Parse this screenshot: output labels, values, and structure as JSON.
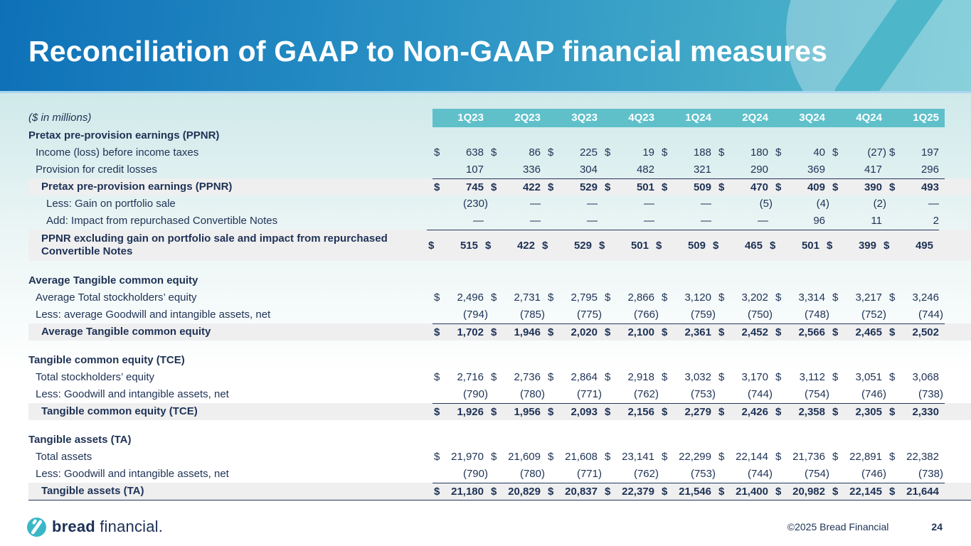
{
  "slide": {
    "title": "Reconciliation of GAAP to Non-GAAP financial measures",
    "units_note": "($ in millions)",
    "footer": {
      "brand_word1": "bread",
      "brand_word2": "financial.",
      "copyright": "©2025 Bread Financial",
      "page_number": "24"
    },
    "colors": {
      "banner_blue": "#0e71b8",
      "banner_teal": "#55bcca",
      "table_header_teal": "#5fc0ca",
      "text_navy": "#1e3255",
      "subtotal_bg": "#efeff0",
      "separator_light_blue": "#a9d6ee"
    },
    "icons": {
      "brand_logo_mark": "bread-financial-circle-slash",
      "watermark": "bread-financial-circle-slash"
    }
  },
  "table": {
    "columns": [
      "1Q23",
      "2Q23",
      "3Q23",
      "4Q23",
      "1Q24",
      "2Q24",
      "3Q24",
      "4Q24",
      "1Q25"
    ],
    "sections": [
      {
        "header": "Pretax pre-provision earnings (PPNR)",
        "rows": [
          {
            "label": "Income (loss) before income taxes",
            "style": "data",
            "dollar": true,
            "values": [
              "638",
              "86",
              "225",
              "19",
              "188",
              "180",
              "40",
              "(27)",
              "197"
            ]
          },
          {
            "label": "Provision for credit losses",
            "style": "data",
            "dollar": false,
            "values": [
              "107",
              "336",
              "304",
              "482",
              "321",
              "290",
              "369",
              "417",
              "296"
            ]
          },
          {
            "label": "Pretax pre-provision earnings (PPNR)",
            "style": "subtotal",
            "dollar": true,
            "values": [
              "745",
              "422",
              "529",
              "501",
              "509",
              "470",
              "409",
              "390",
              "493"
            ]
          },
          {
            "label": "Less: Gain on portfolio sale",
            "style": "adjustment",
            "dollar": false,
            "values": [
              "(230)",
              "—",
              "—",
              "—",
              "—",
              "(5)",
              "(4)",
              "(2)",
              "—"
            ]
          },
          {
            "label": "Add: Impact from repurchased Convertible Notes",
            "style": "adjustment",
            "dollar": false,
            "values": [
              "—",
              "—",
              "—",
              "—",
              "—",
              "—",
              "96",
              "11",
              "2"
            ]
          },
          {
            "label": "PPNR excluding gain on portfolio sale and impact from repurchased Convertible Notes",
            "style": "subtotal",
            "twoline": true,
            "dollar": true,
            "values": [
              "515",
              "422",
              "529",
              "501",
              "509",
              "465",
              "501",
              "399",
              "495"
            ]
          }
        ]
      },
      {
        "header": "Average Tangible common equity",
        "rows": [
          {
            "label": "Average Total stockholders’ equity",
            "style": "data",
            "dollar": true,
            "values": [
              "2,496",
              "2,731",
              "2,795",
              "2,866",
              "3,120",
              "3,202",
              "3,314",
              "3,217",
              "3,246"
            ]
          },
          {
            "label": "Less: average Goodwill and intangible assets, net",
            "style": "data",
            "dollar": false,
            "values": [
              "(794)",
              "(785)",
              "(775)",
              "(766)",
              "(759)",
              "(750)",
              "(748)",
              "(752)",
              "(744)"
            ]
          },
          {
            "label": "Average Tangible common equity",
            "style": "subtotal",
            "dollar": true,
            "values": [
              "1,702",
              "1,946",
              "2,020",
              "2,100",
              "2,361",
              "2,452",
              "2,566",
              "2,465",
              "2,502"
            ]
          }
        ]
      },
      {
        "header": "Tangible common equity (TCE)",
        "rows": [
          {
            "label": "Total stockholders’ equity",
            "style": "data",
            "dollar": true,
            "values": [
              "2,716",
              "2,736",
              "2,864",
              "2,918",
              "3,032",
              "3,170",
              "3,112",
              "3,051",
              "3,068"
            ]
          },
          {
            "label": "Less: Goodwill and intangible assets, net",
            "style": "data",
            "dollar": false,
            "values": [
              "(790)",
              "(780)",
              "(771)",
              "(762)",
              "(753)",
              "(744)",
              "(754)",
              "(746)",
              "(738)"
            ]
          },
          {
            "label": "Tangible common equity (TCE)",
            "style": "subtotal",
            "dollar": true,
            "values": [
              "1,926",
              "1,956",
              "2,093",
              "2,156",
              "2,279",
              "2,426",
              "2,358",
              "2,305",
              "2,330"
            ]
          }
        ]
      },
      {
        "header": "Tangible assets (TA)",
        "rows": [
          {
            "label": "Total assets",
            "style": "data",
            "dollar": true,
            "values": [
              "21,970",
              "21,609",
              "21,608",
              "23,141",
              "22,299",
              "22,144",
              "21,736",
              "22,891",
              "22,382"
            ]
          },
          {
            "label": "Less: Goodwill and intangible assets, net",
            "style": "data",
            "dollar": false,
            "values": [
              "(790)",
              "(780)",
              "(771)",
              "(762)",
              "(753)",
              "(744)",
              "(754)",
              "(746)",
              "(738)"
            ]
          },
          {
            "label": "Tangible assets (TA)",
            "style": "subtotal",
            "final": true,
            "dollar": true,
            "values": [
              "21,180",
              "20,829",
              "20,837",
              "22,379",
              "21,546",
              "21,400",
              "20,982",
              "22,145",
              "21,644"
            ]
          }
        ]
      }
    ]
  }
}
